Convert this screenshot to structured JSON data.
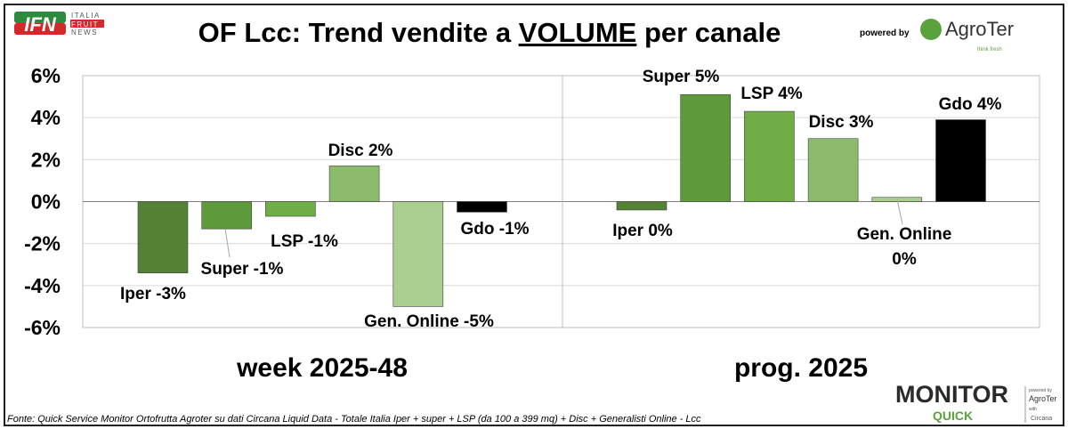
{
  "header": {
    "title_prefix": "OF Lcc: Trend vendite a ",
    "title_emphasis": "VOLUME",
    "title_suffix": " per canale",
    "logo_left": {
      "main": "IFN",
      "line1": "ITALIA",
      "line2": "FRUIT",
      "line3": "NEWS"
    },
    "powered_by": "powered by",
    "logo_right": {
      "name": "AgroTer",
      "tagline": "think fresh"
    }
  },
  "footer": {
    "source": "Fonte: Quick Service Monitor Ortofrutta Agroter su dati Circana Liquid Data - Totale Italia Iper + super + LSP (da 100 a 399 mq) + Disc + Generalisti Online - Lcc",
    "badge": {
      "main": "MONITOR",
      "sub": "QUICK",
      "powered": "powered by",
      "brand": "AgroTer",
      "with": "with",
      "partner": "Circana"
    }
  },
  "colors": {
    "Iper": "#548235",
    "Super": "#5e9a3a",
    "LSP": "#70ad47",
    "Disc": "#8dbb6c",
    "Gen. Online": "#a9d08e",
    "Gdo": "#000000"
  },
  "chart_data": {
    "type": "bar",
    "title": "OF Lcc: Trend vendite a VOLUME per canale",
    "ylim": [
      -6,
      6
    ],
    "yticks": [
      "6%",
      "4%",
      "2%",
      "0%",
      "-2%",
      "-4%",
      "-6%"
    ],
    "grid": true,
    "groups": [
      {
        "name": "week 2025-48",
        "bars": [
          {
            "series": "Iper",
            "value": -3.4,
            "label": "Iper -3%"
          },
          {
            "series": "Super",
            "value": -1.3,
            "label": "Super -1%"
          },
          {
            "series": "LSP",
            "value": -0.7,
            "label": "LSP -1%"
          },
          {
            "series": "Disc",
            "value": 1.7,
            "label": "Disc 2%"
          },
          {
            "series": "Gen. Online",
            "value": -5.0,
            "label": "Gen. Online -5%"
          },
          {
            "series": "Gdo",
            "value": -0.5,
            "label": "Gdo -1%"
          }
        ]
      },
      {
        "name": "prog. 2025",
        "bars": [
          {
            "series": "Iper",
            "value": -0.4,
            "label": "Iper 0%"
          },
          {
            "series": "Super",
            "value": 5.1,
            "label": "Super 5%"
          },
          {
            "series": "LSP",
            "value": 4.3,
            "label": "LSP 4%"
          },
          {
            "series": "Disc",
            "value": 3.0,
            "label": "Disc 3%"
          },
          {
            "series": "Gen. Online",
            "value": 0.2,
            "label": "Gen. Online 0%"
          },
          {
            "series": "Gdo",
            "value": 3.9,
            "label": "Gdo 4%"
          }
        ]
      }
    ]
  }
}
